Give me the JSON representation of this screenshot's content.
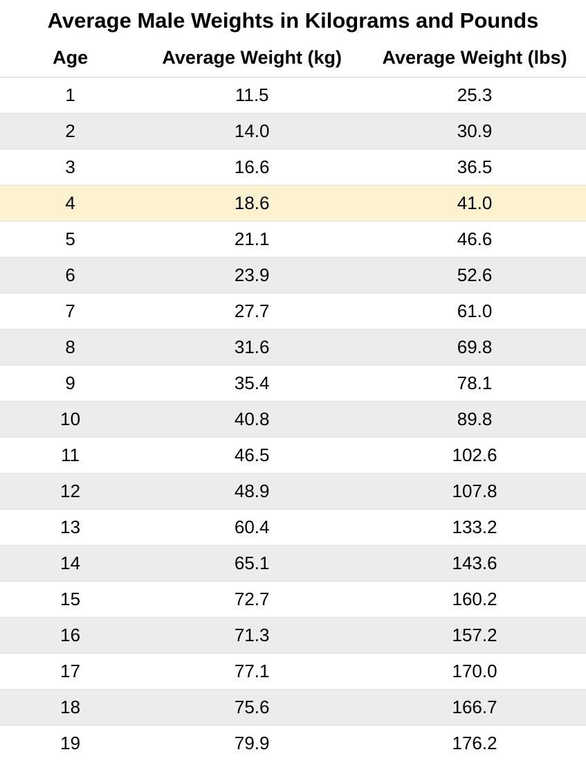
{
  "table": {
    "title": "Average Male Weights in Kilograms and Pounds",
    "columns": [
      "Age",
      "Average Weight (kg)",
      "Average Weight (lbs)"
    ],
    "rows": [
      {
        "age": "1",
        "kg": "11.5",
        "lbs": "25.3",
        "highlight": false
      },
      {
        "age": "2",
        "kg": "14.0",
        "lbs": "30.9",
        "highlight": false
      },
      {
        "age": "3",
        "kg": "16.6",
        "lbs": "36.5",
        "highlight": false
      },
      {
        "age": "4",
        "kg": "18.6",
        "lbs": "41.0",
        "highlight": true
      },
      {
        "age": "5",
        "kg": "21.1",
        "lbs": "46.6",
        "highlight": false
      },
      {
        "age": "6",
        "kg": "23.9",
        "lbs": "52.6",
        "highlight": false
      },
      {
        "age": "7",
        "kg": "27.7",
        "lbs": "61.0",
        "highlight": false
      },
      {
        "age": "8",
        "kg": "31.6",
        "lbs": "69.8",
        "highlight": false
      },
      {
        "age": "9",
        "kg": "35.4",
        "lbs": "78.1",
        "highlight": false
      },
      {
        "age": "10",
        "kg": "40.8",
        "lbs": "89.8",
        "highlight": false
      },
      {
        "age": "11",
        "kg": "46.5",
        "lbs": "102.6",
        "highlight": false
      },
      {
        "age": "12",
        "kg": "48.9",
        "lbs": "107.8",
        "highlight": false
      },
      {
        "age": "13",
        "kg": "60.4",
        "lbs": "133.2",
        "highlight": false
      },
      {
        "age": "14",
        "kg": "65.1",
        "lbs": "143.6",
        "highlight": false
      },
      {
        "age": "15",
        "kg": "72.7",
        "lbs": "160.2",
        "highlight": false
      },
      {
        "age": "16",
        "kg": "71.3",
        "lbs": "157.2",
        "highlight": false
      },
      {
        "age": "17",
        "kg": "77.1",
        "lbs": "170.0",
        "highlight": false
      },
      {
        "age": "18",
        "kg": "75.6",
        "lbs": "166.7",
        "highlight": false
      },
      {
        "age": "19",
        "kg": "79.9",
        "lbs": "176.2",
        "highlight": false
      }
    ],
    "colors": {
      "row_odd_bg": "#ffffff",
      "row_even_bg": "#ececec",
      "row_highlight_bg": "#fdf2d0",
      "text_color": "#000000",
      "border_color": "#e0e0e0"
    },
    "typography": {
      "title_fontsize": 31,
      "header_fontsize": 27,
      "cell_fontsize": 26,
      "font_family": "Arial"
    }
  }
}
